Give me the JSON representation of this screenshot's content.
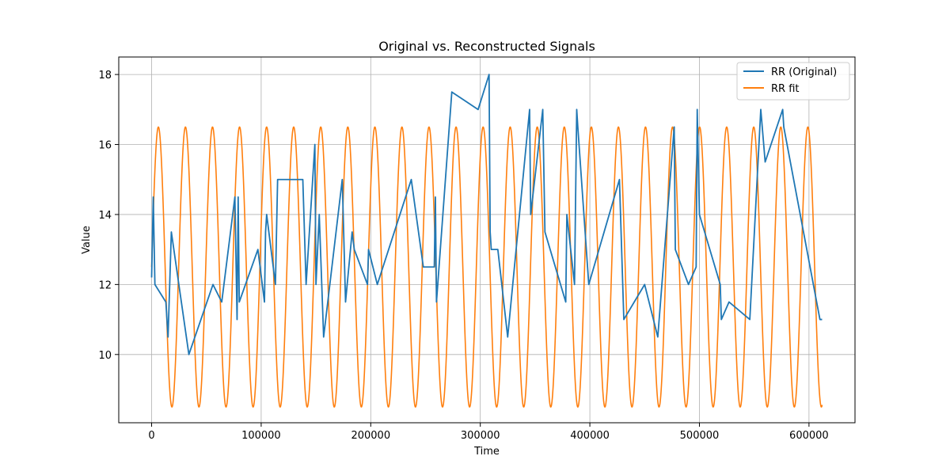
{
  "chart_data": {
    "type": "line",
    "title": "Original vs. Reconstructed Signals",
    "xlabel": "Time",
    "ylabel": "Value",
    "xlim": [
      -30000,
      642000
    ],
    "ylim": [
      8.05,
      18.5
    ],
    "xticks": [
      0,
      100000,
      200000,
      300000,
      400000,
      500000,
      600000
    ],
    "xtick_labels": [
      "0",
      "100000",
      "200000",
      "300000",
      "400000",
      "500000",
      "600000"
    ],
    "yticks": [
      10,
      12,
      14,
      16,
      18
    ],
    "ytick_labels": [
      "10",
      "12",
      "14",
      "16",
      "18"
    ],
    "grid": true,
    "legend_position": "top-right",
    "series": [
      {
        "name": "RR (Original)",
        "color": "#1f77b4",
        "x": [
          0,
          1500,
          3000,
          13000,
          15000,
          18000,
          34000,
          56000,
          64000,
          76000,
          78000,
          79000,
          80000,
          97000,
          103000,
          104000,
          105000,
          113000,
          115000,
          138000,
          141000,
          147000,
          149000,
          150000,
          153000,
          157000,
          174000,
          177000,
          183000,
          185000,
          197000,
          198000,
          206000,
          237000,
          248000,
          258000,
          259000,
          260000,
          274000,
          298000,
          308000,
          309000,
          310000,
          316000,
          325000,
          345000,
          346000,
          357000,
          359000,
          378000,
          379000,
          386000,
          388000,
          389000,
          399000,
          427000,
          431000,
          450000,
          462000,
          477000,
          478000,
          490000,
          497000,
          498000,
          500000,
          519000,
          520000,
          527000,
          546000,
          556000,
          560000,
          576000,
          577000,
          610000,
          612000
        ],
        "y": [
          12.2,
          14.5,
          12.0,
          11.5,
          10.5,
          13.5,
          10.0,
          12.0,
          11.5,
          14.5,
          11.0,
          14.5,
          11.5,
          13.0,
          11.5,
          13.5,
          14.0,
          12.0,
          15.0,
          15.0,
          12.0,
          15.0,
          16.0,
          12.0,
          14.0,
          10.5,
          15.0,
          11.5,
          13.5,
          13.0,
          12.0,
          13.0,
          12.0,
          15.0,
          12.5,
          12.5,
          14.5,
          11.5,
          17.5,
          17.0,
          18.0,
          13.5,
          13.0,
          13.0,
          10.5,
          17.0,
          14.0,
          17.0,
          13.5,
          11.5,
          14.0,
          12.0,
          17.0,
          16.5,
          12.0,
          15.0,
          11.0,
          12.0,
          10.5,
          16.5,
          13.0,
          12.0,
          12.5,
          17.0,
          14.0,
          12.0,
          11.0,
          11.5,
          11.0,
          17.0,
          15.5,
          17.0,
          16.5,
          11.0,
          11.0
        ]
      },
      {
        "name": "RR fit",
        "color": "#ff7f0e",
        "function": "12.5 + 4*sin(2*pi*(x - 0)/24700)",
        "x_range": [
          0,
          612000
        ],
        "samples": 3000
      }
    ]
  }
}
